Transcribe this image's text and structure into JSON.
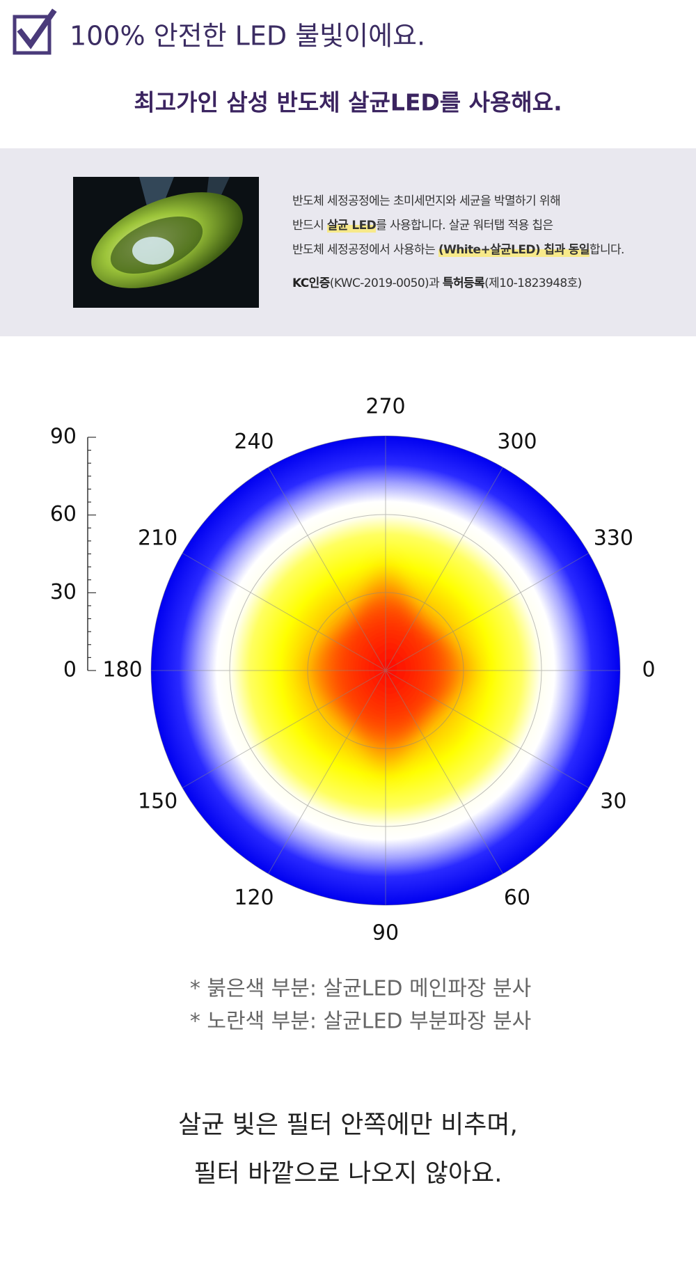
{
  "header": {
    "title": "100% 안전한 LED 불빛이에요.",
    "subtitle": "최고가인 삼성 반도체 살균LED를 사용해요."
  },
  "info": {
    "lines": [
      [
        "반도체 세정공정에는 초미세먼지와 세균을 박멸하기 위해"
      ],
      [
        "반드시 ",
        "살균 LED",
        "를 사용합니다. 살균 워터탭 적용 칩은"
      ],
      [
        "반도체 세정공정에서 사용하는 ",
        "(White+살균LED) 칩과 동일",
        "합니다."
      ],
      [
        "KC인증",
        "(KWC-2019-0050)과 ",
        "특허등록",
        "(제10-1823948호)"
      ]
    ]
  },
  "polar": {
    "angle_labels": [
      0,
      30,
      60,
      90,
      120,
      150,
      180,
      210,
      240,
      270,
      300,
      330
    ],
    "radial_labels": [
      0,
      30,
      60,
      90
    ]
  },
  "notes": [
    "* 붉은색 부분: 살균LED 메인파장 분사",
    "* 노란색 부분: 살균LED 부분파장 분사"
  ],
  "closing": [
    "살균 빛은 필터 안쪽에만 비추며,",
    "필터 바깥으로 나오지 않아요."
  ]
}
